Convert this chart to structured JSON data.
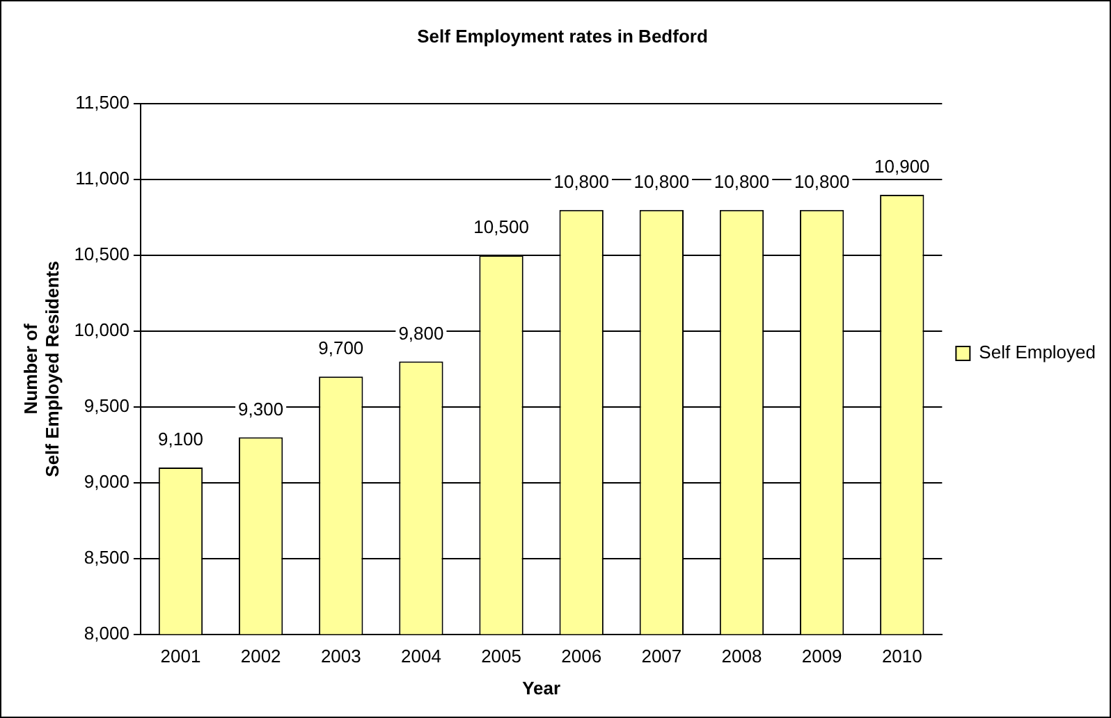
{
  "chart_data": {
    "type": "bar",
    "title": "Self Employment rates in Bedford",
    "xlabel": "Year",
    "ylabel": "Number of\nSelf Employed Residents",
    "categories": [
      "2001",
      "2002",
      "2003",
      "2004",
      "2005",
      "2006",
      "2007",
      "2008",
      "2009",
      "2010"
    ],
    "series": [
      {
        "name": "Self Employed",
        "color": "#ffff99",
        "values": [
          9100,
          9300,
          9700,
          9800,
          10500,
          10800,
          10800,
          10800,
          10800,
          10900
        ],
        "value_labels": [
          "9,100",
          "9,300",
          "9,700",
          "9,800",
          "10,500",
          "10,800",
          "10,800",
          "10,800",
          "10,800",
          "10,900"
        ]
      }
    ],
    "ylim": [
      8000,
      11500
    ],
    "yticks": [
      {
        "value": 8000,
        "label": "8,000"
      },
      {
        "value": 8500,
        "label": "8,500"
      },
      {
        "value": 9000,
        "label": "9,000"
      },
      {
        "value": 9500,
        "label": "9,500"
      },
      {
        "value": 10000,
        "label": "10,000"
      },
      {
        "value": 10500,
        "label": "10,500"
      },
      {
        "value": 11000,
        "label": "11,000"
      },
      {
        "value": 11500,
        "label": "11,500"
      }
    ],
    "grid": "y",
    "legend": "right"
  }
}
